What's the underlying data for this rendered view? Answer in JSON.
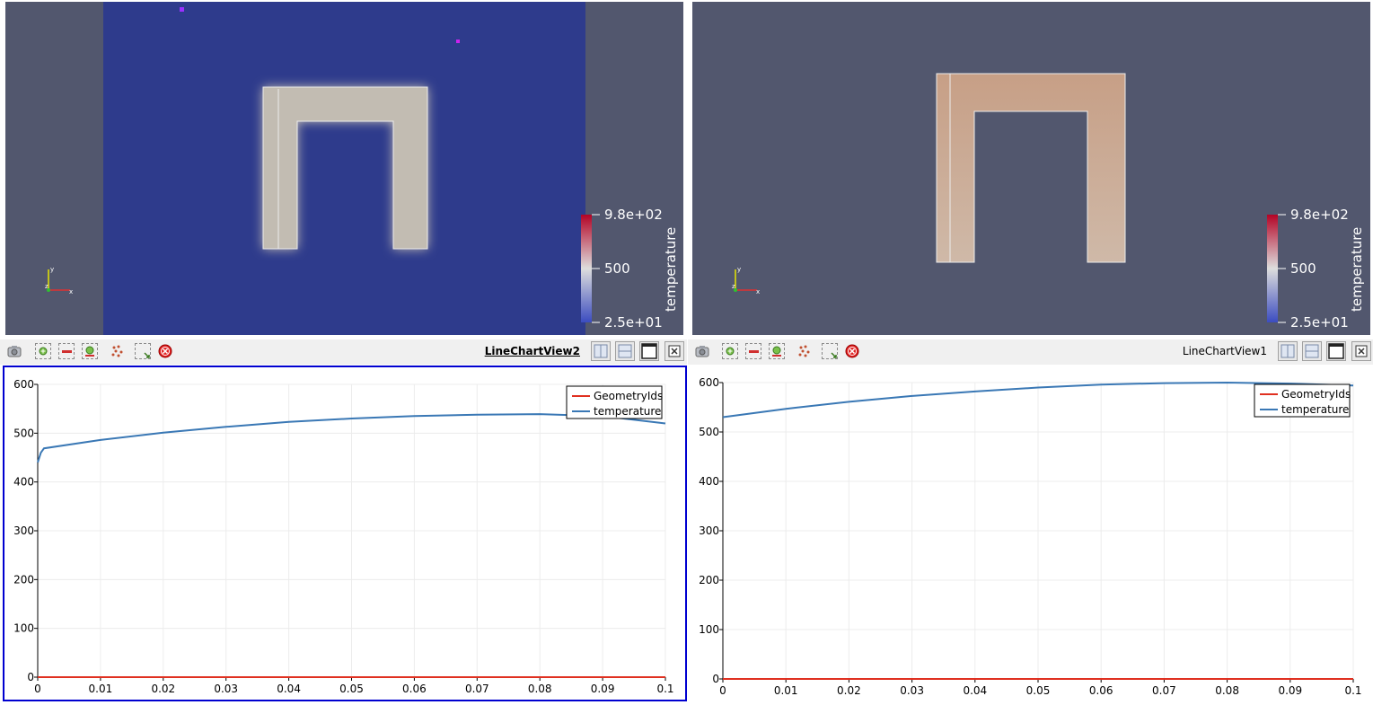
{
  "left_view": {
    "colorbar": {
      "title": "temperature",
      "max_label": "9.8e+02",
      "mid_label": "500",
      "min_label": "2.5e+01"
    },
    "background_color": "#52576e",
    "domain_color": "#2e3b8c",
    "shape_color": "#c7bfb2",
    "point_color": "#cc22ee"
  },
  "right_view": {
    "colorbar": {
      "title": "temperature",
      "max_label": "9.8e+02",
      "mid_label": "500",
      "min_label": "2.5e+01"
    },
    "background_color": "#52576e",
    "shape_color": "#c79f86"
  },
  "toolbar_left": {
    "view_title": "LineChartView2",
    "active": true
  },
  "toolbar_right": {
    "view_title": "LineChartView1",
    "active": false
  },
  "toolbar_icons": [
    "camera-icon",
    "select-points-on-icon",
    "select-points-off-icon",
    "select-points-add-icon",
    "select-cells-icon",
    "select-block-icon",
    "clear-selection-icon"
  ],
  "layout_icons": [
    "split-horizontal-icon",
    "split-vertical-icon",
    "maximize-icon",
    "close-view-icon"
  ],
  "chart_data": [
    {
      "type": "line",
      "title": "",
      "xlabel": "",
      "ylabel": "",
      "xlim": [
        0,
        0.1
      ],
      "ylim": [
        0,
        600
      ],
      "xticks": [
        "0",
        "0.01",
        "0.02",
        "0.03",
        "0.04",
        "0.05",
        "0.06",
        "0.07",
        "0.08",
        "0.09",
        "0.1"
      ],
      "yticks": [
        "0",
        "100",
        "200",
        "300",
        "400",
        "500",
        "600"
      ],
      "grid": true,
      "legend_position": "top-right",
      "series": [
        {
          "name": "GeometryIds",
          "color": "#e03020",
          "x": [
            0,
            0.1
          ],
          "y": [
            0,
            0
          ]
        },
        {
          "name": "temperature",
          "color": "#3a78b5",
          "x": [
            0,
            0.0005,
            0.001,
            0.01,
            0.02,
            0.03,
            0.04,
            0.05,
            0.06,
            0.07,
            0.08,
            0.09,
            0.1
          ],
          "y": [
            440,
            460,
            469,
            486,
            501,
            513,
            523,
            530,
            535,
            538,
            539,
            535,
            520
          ]
        }
      ]
    },
    {
      "type": "line",
      "title": "",
      "xlabel": "",
      "ylabel": "",
      "xlim": [
        0,
        0.1
      ],
      "ylim": [
        0,
        600
      ],
      "xticks": [
        "0",
        "0.01",
        "0.02",
        "0.03",
        "0.04",
        "0.05",
        "0.06",
        "0.07",
        "0.08",
        "0.09",
        "0.1"
      ],
      "yticks": [
        "0",
        "100",
        "200",
        "300",
        "400",
        "500",
        "600"
      ],
      "grid": true,
      "legend_position": "top-right",
      "series": [
        {
          "name": "GeometryIds",
          "color": "#e03020",
          "x": [
            0,
            0.1
          ],
          "y": [
            0,
            0
          ]
        },
        {
          "name": "temperature",
          "color": "#3a78b5",
          "x": [
            0,
            0.01,
            0.02,
            0.03,
            0.04,
            0.05,
            0.06,
            0.07,
            0.08,
            0.09,
            0.1
          ],
          "y": [
            530,
            547,
            561,
            573,
            582,
            590,
            596,
            599,
            600,
            598,
            594
          ]
        }
      ]
    }
  ]
}
